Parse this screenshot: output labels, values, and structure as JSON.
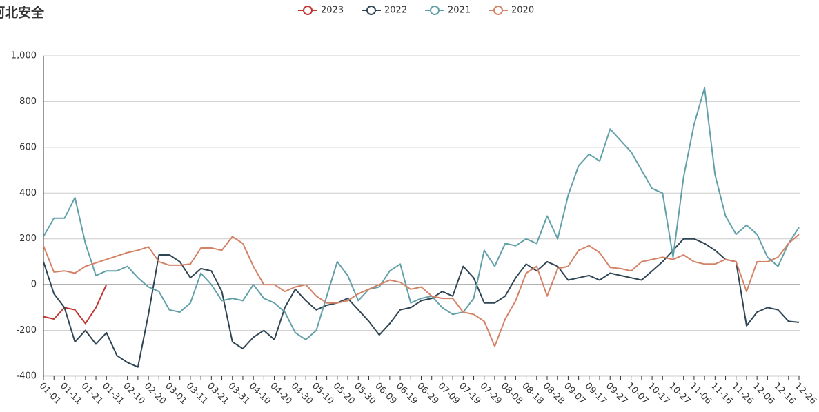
{
  "chart_data": {
    "type": "line",
    "title": "河北安全",
    "categories": [
      "01-01",
      null,
      "01-11",
      null,
      "01-21",
      null,
      "01-31",
      null,
      "02-10",
      null,
      "02-20",
      null,
      "03-01",
      null,
      "03-11",
      null,
      "03-21",
      null,
      "03-31",
      null,
      "04-10",
      null,
      "04-20",
      null,
      "04-30",
      null,
      "05-10",
      null,
      "05-20",
      null,
      "05-30",
      null,
      "06-09",
      null,
      "06-19",
      null,
      "06-29",
      null,
      "07-09",
      null,
      "07-19",
      null,
      "07-29",
      null,
      "08-08",
      null,
      "08-18",
      null,
      "08-28",
      null,
      "09-07",
      null,
      "09-17",
      null,
      "09-27",
      null,
      "10-07",
      null,
      "10-17",
      null,
      "10-27",
      null,
      "11-06",
      null,
      "11-16",
      null,
      "11-26",
      null,
      "12-06",
      null,
      "12-16",
      null,
      "12-26"
    ],
    "series": [
      {
        "name": "2023",
        "color": "#c23531",
        "values": [
          -140,
          -150,
          -100,
          -110,
          -170,
          -100,
          0,
          null,
          null,
          null,
          null,
          null,
          null,
          null,
          null,
          null,
          null,
          null,
          null,
          null,
          null,
          null,
          null,
          null,
          null,
          null,
          null,
          null,
          null,
          null,
          null,
          null,
          null,
          null,
          null,
          null,
          null,
          null,
          null,
          null,
          null,
          null,
          null,
          null,
          null,
          null,
          null,
          null,
          null,
          null,
          null,
          null,
          null,
          null,
          null,
          null,
          null,
          null,
          null,
          null,
          null,
          null,
          null,
          null,
          null,
          null,
          null,
          null,
          null,
          null,
          null,
          null,
          null
        ]
      },
      {
        "name": "2022",
        "color": "#2f4554",
        "values": [
          100,
          -40,
          -100,
          -250,
          -200,
          -260,
          -210,
          -310,
          -340,
          -360,
          -130,
          130,
          130,
          100,
          30,
          70,
          60,
          -30,
          -250,
          -280,
          -230,
          -200,
          -240,
          -100,
          -20,
          -70,
          -110,
          -90,
          -80,
          -60,
          -110,
          -160,
          -220,
          -170,
          -110,
          -100,
          -70,
          -60,
          -30,
          -50,
          80,
          30,
          -80,
          -80,
          -50,
          30,
          90,
          60,
          100,
          80,
          20,
          30,
          40,
          20,
          50,
          40,
          30,
          20,
          60,
          100,
          150,
          200,
          200,
          180,
          150,
          110,
          100,
          -180,
          -120,
          -100,
          -110,
          -160,
          -165
        ]
      },
      {
        "name": "2021",
        "color": "#61a0a8",
        "values": [
          210,
          290,
          290,
          380,
          180,
          40,
          60,
          60,
          80,
          30,
          -10,
          -30,
          -110,
          -120,
          -80,
          50,
          0,
          -70,
          -60,
          -70,
          0,
          -60,
          -80,
          -120,
          -210,
          -240,
          -200,
          -50,
          100,
          40,
          -70,
          -20,
          -10,
          60,
          90,
          -80,
          -60,
          -50,
          -100,
          -130,
          -120,
          -60,
          150,
          80,
          180,
          170,
          200,
          180,
          300,
          200,
          390,
          520,
          570,
          540,
          680,
          630,
          580,
          500,
          420,
          400,
          120,
          470,
          700,
          860,
          480,
          300,
          220,
          260,
          220,
          120,
          80,
          180,
          250
        ]
      },
      {
        "name": "2020",
        "color": "#d48265",
        "values": [
          170,
          55,
          60,
          50,
          80,
          95,
          110,
          125,
          140,
          150,
          165,
          100,
          85,
          85,
          90,
          160,
          160,
          150,
          210,
          180,
          80,
          0,
          0,
          -30,
          -10,
          0,
          -50,
          -80,
          -80,
          -70,
          -40,
          -20,
          0,
          20,
          10,
          -20,
          -10,
          -50,
          -60,
          -60,
          -120,
          -130,
          -160,
          -270,
          -150,
          -70,
          50,
          80,
          -50,
          70,
          80,
          150,
          170,
          140,
          75,
          70,
          60,
          100,
          110,
          120,
          110,
          130,
          100,
          90,
          90,
          110,
          100,
          -30,
          100,
          100,
          120,
          180,
          220
        ]
      }
    ],
    "ylim": [
      -400,
      1000
    ],
    "yticks": [
      -400,
      -200,
      0,
      200,
      400,
      600,
      800,
      {
        "value": 1000,
        "label": "1,000"
      }
    ],
    "grid": true
  }
}
